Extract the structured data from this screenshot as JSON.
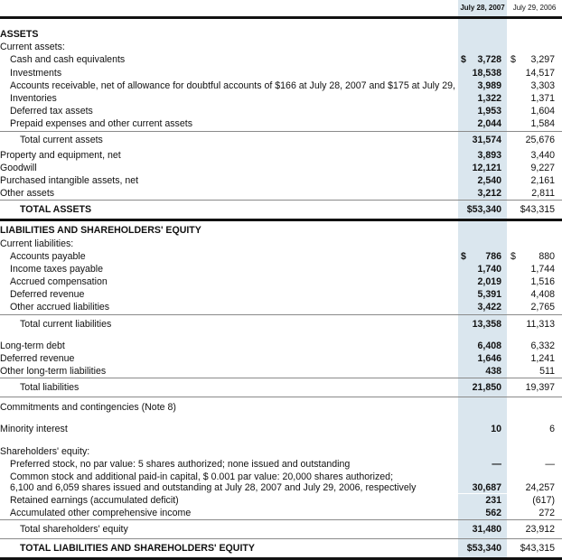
{
  "header": {
    "col1": "July 28, 2007",
    "col2": "July 29, 2006"
  },
  "colors": {
    "highlight_column": "#dae6ee",
    "rule": "#111111"
  },
  "rows": [
    {
      "type": "section",
      "label": "ASSETS",
      "pad": 10
    },
    {
      "type": "sub",
      "label": "Current assets:"
    },
    {
      "type": "i1",
      "label": "Cash and cash equivalents",
      "v1": "3,728",
      "v2": "3,297",
      "cur": "$"
    },
    {
      "type": "i1",
      "label": "Investments",
      "v1": "18,538",
      "v2": "14,517"
    },
    {
      "type": "i1",
      "label": "Accounts receivable, net of allowance for doubtful accounts of $166 at July 28, 2007 and $175 at July 29, 2006",
      "v1": "3,989",
      "v2": "3,303"
    },
    {
      "type": "i1",
      "label": "Inventories",
      "v1": "1,322",
      "v2": "1,371"
    },
    {
      "type": "i1",
      "label": "Deferred tax assets",
      "v1": "1,953",
      "v2": "1,604"
    },
    {
      "type": "i1",
      "label": "Prepaid expenses and other current assets",
      "v1": "2,044",
      "v2": "1,584"
    },
    {
      "type": "total",
      "label": "Total current assets",
      "v1": "31,574",
      "v2": "25,676"
    },
    {
      "type": "sub",
      "label": "Property and equipment, net",
      "v1": "3,893",
      "v2": "3,440"
    },
    {
      "type": "sub",
      "label": "Goodwill",
      "v1": "12,121",
      "v2": "9,227"
    },
    {
      "type": "sub",
      "label": "Purchased intangible assets, net",
      "v1": "2,540",
      "v2": "2,161"
    },
    {
      "type": "sub",
      "label": "Other assets",
      "v1": "3,212",
      "v2": "2,811"
    },
    {
      "type": "grand",
      "label": "TOTAL ASSETS",
      "v1": "$53,340",
      "v2": "$43,315",
      "border": "thick"
    },
    {
      "type": "section",
      "label": "LIABILITIES AND SHAREHOLDERS' EQUITY",
      "pad": 3
    },
    {
      "type": "sub",
      "label": "Current liabilities:"
    },
    {
      "type": "i1",
      "label": "Accounts payable",
      "v1": "786",
      "v2": "880",
      "cur": "$"
    },
    {
      "type": "i1",
      "label": "Income taxes payable",
      "v1": "1,740",
      "v2": "1,744"
    },
    {
      "type": "i1",
      "label": "Accrued compensation",
      "v1": "2,019",
      "v2": "1,516"
    },
    {
      "type": "i1",
      "label": "Deferred revenue",
      "v1": "5,391",
      "v2": "4,408"
    },
    {
      "type": "i1",
      "label": "Other accrued liabilities",
      "v1": "3,422",
      "v2": "2,765"
    },
    {
      "type": "total",
      "label": "Total current liabilities",
      "v1": "13,358",
      "v2": "11,313",
      "tall": true
    },
    {
      "type": "sub",
      "label": "Long-term debt",
      "v1": "6,408",
      "v2": "6,332",
      "pad": 7
    },
    {
      "type": "sub",
      "label": "Deferred revenue",
      "v1": "1,646",
      "v2": "1,241"
    },
    {
      "type": "sub",
      "label": "Other long-term liabilities",
      "v1": "438",
      "v2": "511"
    },
    {
      "type": "total",
      "label": "Total liabilities",
      "v1": "21,850",
      "v2": "19,397",
      "tall": true,
      "border": "thin"
    },
    {
      "type": "sub",
      "label": "Commitments and contingencies (Note 8)",
      "pad": 4
    },
    {
      "type": "sub",
      "label": "Minority interest",
      "v1": "10",
      "v2": "6",
      "pad": 10
    },
    {
      "type": "sub",
      "label": "Shareholders' equity:",
      "pad": 10
    },
    {
      "type": "i1",
      "label": "Preferred stock, no par value: 5 shares authorized; none issued and outstanding",
      "v1": "—",
      "v2": "—"
    },
    {
      "type": "multi",
      "label": "Common stock and additional paid-in capital, $ 0.001 par value: 20,000 shares authorized;",
      "label2": "6,100 and 6,059 shares issued and outstanding at July 28, 2007 and July 29, 2006, respectively",
      "v1": "30,687",
      "v2": "24,257"
    },
    {
      "type": "i1",
      "label": "Retained earnings (accumulated deficit)",
      "v1": "231",
      "v2": "(617)"
    },
    {
      "type": "i1",
      "label": "Accumulated other comprehensive income",
      "v1": "562",
      "v2": "272"
    },
    {
      "type": "total",
      "label": "Total shareholders' equity",
      "v1": "31,480",
      "v2": "23,912",
      "tall": true
    },
    {
      "type": "grand",
      "label": "TOTAL LIABILITIES AND SHAREHOLDERS' EQUITY",
      "v1": "$53,340",
      "v2": "$43,315",
      "border": "thick"
    }
  ]
}
